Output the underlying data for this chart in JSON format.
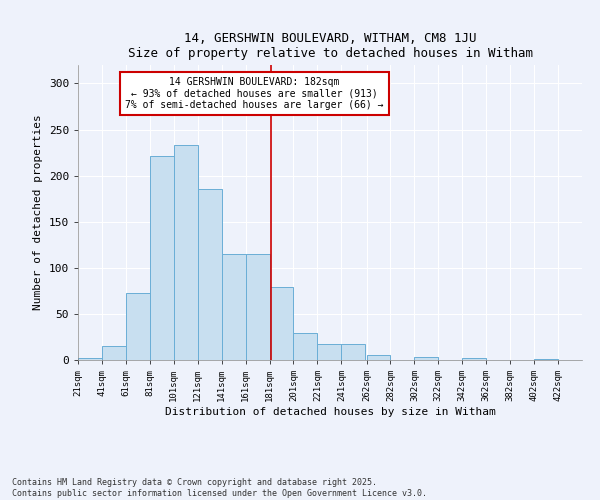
{
  "title": "14, GERSHWIN BOULEVARD, WITHAM, CM8 1JU",
  "subtitle": "Size of property relative to detached houses in Witham",
  "xlabel": "Distribution of detached houses by size in Witham",
  "ylabel": "Number of detached properties",
  "bar_color": "#c8dff0",
  "bar_edge_color": "#6aaed6",
  "background_color": "#eef2fb",
  "grid_color": "#ffffff",
  "bins_start": [
    21,
    41,
    61,
    81,
    101,
    121,
    141,
    161,
    181,
    201,
    221,
    241,
    262,
    282,
    302,
    322,
    342,
    362,
    382,
    402
  ],
  "bin_width": 20,
  "values": [
    2,
    15,
    73,
    221,
    233,
    186,
    115,
    115,
    79,
    29,
    17,
    17,
    5,
    0,
    3,
    0,
    2,
    0,
    0,
    1
  ],
  "vline_x": 182,
  "vline_color": "#cc0000",
  "annotation_lines": [
    "14 GERSHWIN BOULEVARD: 182sqm",
    "← 93% of detached houses are smaller (913)",
    "7% of semi-detached houses are larger (66) →"
  ],
  "annotation_box_color": "#cc0000",
  "ylim": [
    0,
    320
  ],
  "yticks": [
    0,
    50,
    100,
    150,
    200,
    250,
    300
  ],
  "footnote": "Contains HM Land Registry data © Crown copyright and database right 2025.\nContains public sector information licensed under the Open Government Licence v3.0.",
  "tick_labels": [
    "21sqm",
    "41sqm",
    "61sqm",
    "81sqm",
    "101sqm",
    "121sqm",
    "141sqm",
    "161sqm",
    "181sqm",
    "201sqm",
    "221sqm",
    "241sqm",
    "262sqm",
    "282sqm",
    "302sqm",
    "322sqm",
    "342sqm",
    "362sqm",
    "382sqm",
    "402sqm",
    "422sqm"
  ]
}
